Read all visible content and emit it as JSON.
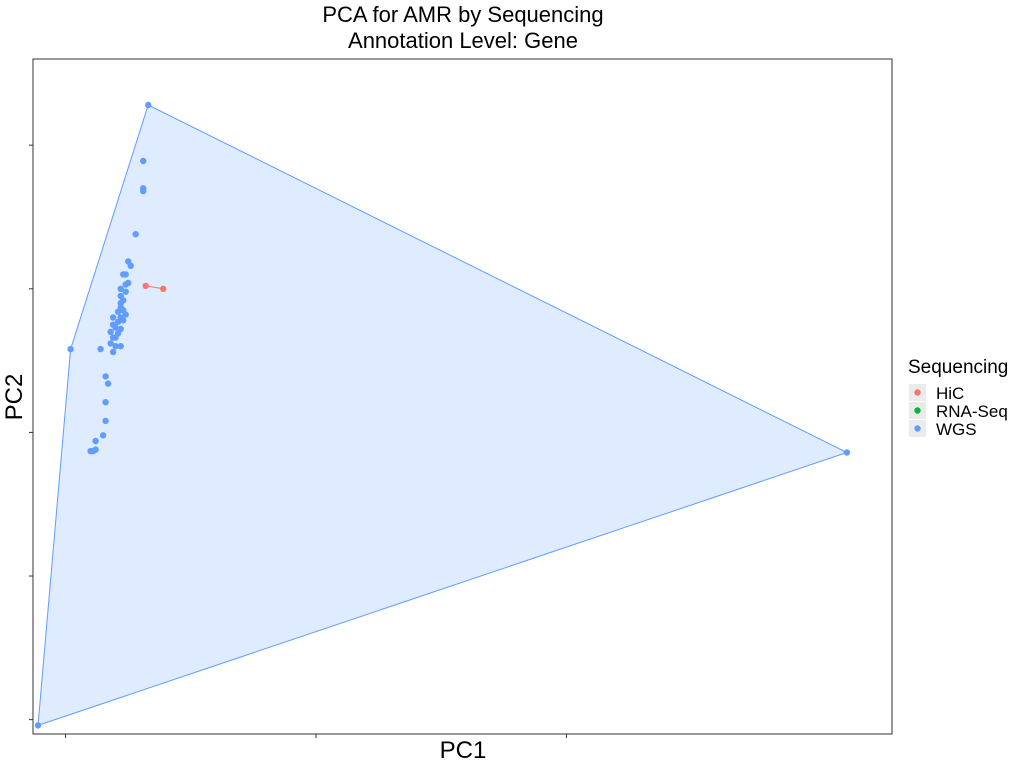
{
  "chart_data": {
    "type": "scatter",
    "title": "PCA for AMR by Sequencing",
    "subtitle": "Annotation Level: Gene",
    "xlabel": "PC1",
    "ylabel": "PC2",
    "xlim": [
      -0.13,
      3.3
    ],
    "ylim": [
      -2.1,
      2.6
    ],
    "grid": false,
    "legend": {
      "title": "Sequencing",
      "placement": "right",
      "entries": [
        {
          "label": "HiC",
          "color": "#F8766D"
        },
        {
          "label": "RNA-Seq",
          "color": "#00BA38"
        },
        {
          "label": "WGS",
          "color": "#619CFF"
        }
      ]
    },
    "series": [
      {
        "name": "HiC",
        "color": "#F8766D",
        "hull": true,
        "points": [
          [
            0.32,
            1.02
          ],
          [
            0.39,
            1.0
          ]
        ]
      },
      {
        "name": "RNA-Seq",
        "color": "#00BA38",
        "hull": true,
        "points": []
      },
      {
        "name": "WGS",
        "color": "#619CFF",
        "hull": true,
        "points": [
          [
            0.33,
            2.28
          ],
          [
            0.31,
            1.89
          ],
          [
            0.31,
            1.7
          ],
          [
            0.31,
            1.68
          ],
          [
            0.28,
            1.38
          ],
          [
            0.25,
            1.19
          ],
          [
            0.26,
            1.16
          ],
          [
            0.23,
            1.1
          ],
          [
            0.24,
            1.1
          ],
          [
            0.25,
            1.04
          ],
          [
            0.24,
            1.03
          ],
          [
            0.22,
            1.0
          ],
          [
            0.24,
            0.98
          ],
          [
            0.22,
            0.95
          ],
          [
            0.23,
            0.92
          ],
          [
            0.22,
            0.87
          ],
          [
            0.23,
            0.85
          ],
          [
            0.21,
            0.84
          ],
          [
            0.24,
            0.82
          ],
          [
            0.19,
            0.8
          ],
          [
            0.22,
            0.8
          ],
          [
            0.21,
            0.77
          ],
          [
            0.23,
            0.78
          ],
          [
            0.19,
            0.75
          ],
          [
            0.2,
            0.73
          ],
          [
            0.22,
            0.72
          ],
          [
            0.18,
            0.7
          ],
          [
            0.21,
            0.69
          ],
          [
            0.19,
            0.66
          ],
          [
            0.2,
            0.66
          ],
          [
            0.18,
            0.62
          ],
          [
            0.2,
            0.6
          ],
          [
            0.22,
            0.6
          ],
          [
            0.19,
            0.56
          ],
          [
            0.14,
            0.58
          ],
          [
            0.02,
            0.58
          ],
          [
            0.16,
            0.39
          ],
          [
            0.17,
            0.34
          ],
          [
            0.16,
            0.21
          ],
          [
            0.16,
            0.08
          ],
          [
            0.15,
            -0.02
          ],
          [
            0.12,
            -0.06
          ],
          [
            0.12,
            -0.12
          ],
          [
            0.1,
            -0.13
          ],
          [
            0.11,
            -0.13
          ],
          [
            3.12,
            -0.14
          ],
          [
            -0.11,
            -2.04
          ],
          [
            0.22,
            0.9
          ]
        ]
      }
    ]
  }
}
